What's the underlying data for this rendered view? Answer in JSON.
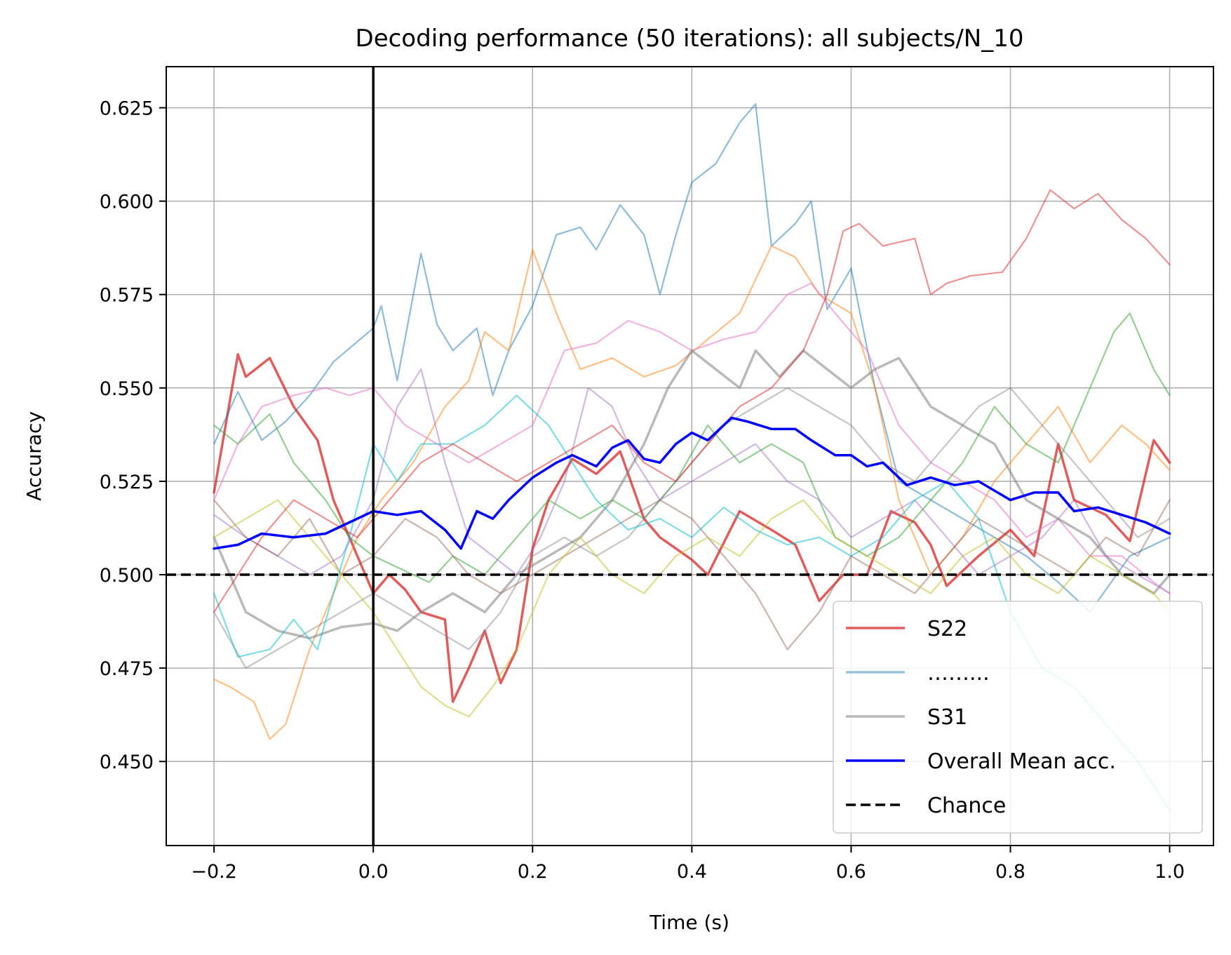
{
  "chart_data": {
    "type": "line",
    "title": "Decoding performance (50 iterations): all subjects/N_10",
    "xlabel": "Time (s)",
    "ylabel": "Accuracy",
    "xlim": [
      -0.26,
      1.055
    ],
    "ylim": [
      0.4275,
      0.636
    ],
    "xticks": [
      -0.2,
      0.0,
      0.2,
      0.4,
      0.6,
      0.8,
      1.0
    ],
    "xtick_labels": [
      "−0.2",
      "0.0",
      "0.2",
      "0.4",
      "0.6",
      "0.8",
      "1.0"
    ],
    "yticks": [
      0.45,
      0.475,
      0.5,
      0.525,
      0.55,
      0.575,
      0.6,
      0.625
    ],
    "ytick_labels": [
      "0.450",
      "0.475",
      "0.500",
      "0.525",
      "0.550",
      "0.575",
      "0.600",
      "0.625"
    ],
    "grid": true,
    "legend_position": "lower-right",
    "vline_x": 0.0,
    "chance_level": 0.5,
    "legend": [
      {
        "label": "S22",
        "color": "#d62728",
        "style": "solid",
        "opacity": 0.75
      },
      {
        "label": "……...",
        "color": "#1f77b4",
        "style": "solid",
        "opacity": 0.45
      },
      {
        "label": "S31",
        "color": "#7f7f7f",
        "style": "solid",
        "opacity": 0.55
      },
      {
        "label": "Overall Mean acc.",
        "color": "#0000ff",
        "style": "solid",
        "opacity": 1
      },
      {
        "label": "Chance",
        "color": "#000000",
        "style": "dashed",
        "opacity": 1
      }
    ],
    "series": [
      {
        "color": "#d62728",
        "opacity": 0.75,
        "width": 3.5,
        "x": [
          -0.2,
          -0.17,
          -0.16,
          -0.13,
          -0.1,
          -0.07,
          -0.05,
          -0.02,
          0.0,
          0.02,
          0.04,
          0.06,
          0.09,
          0.1,
          0.12,
          0.14,
          0.16,
          0.18,
          0.2,
          0.22,
          0.25,
          0.28,
          0.31,
          0.34,
          0.36,
          0.4,
          0.42,
          0.46,
          0.5,
          0.53,
          0.56,
          0.59,
          0.62,
          0.65,
          0.68,
          0.7,
          0.72,
          0.76,
          0.8,
          0.83,
          0.86,
          0.88,
          0.92,
          0.95,
          0.98,
          1.0
        ],
        "y": [
          0.522,
          0.559,
          0.553,
          0.558,
          0.545,
          0.536,
          0.52,
          0.505,
          0.495,
          0.5,
          0.496,
          0.49,
          0.488,
          0.466,
          0.475,
          0.485,
          0.471,
          0.48,
          0.507,
          0.52,
          0.531,
          0.527,
          0.533,
          0.515,
          0.51,
          0.504,
          0.5,
          0.517,
          0.512,
          0.508,
          0.493,
          0.5,
          0.5,
          0.517,
          0.514,
          0.508,
          0.497,
          0.505,
          0.512,
          0.505,
          0.535,
          0.52,
          0.516,
          0.509,
          0.536,
          0.53
        ]
      },
      {
        "color": "#1f77b4",
        "opacity": 0.5,
        "width": 2.2,
        "x": [
          -0.2,
          -0.17,
          -0.14,
          -0.11,
          -0.08,
          -0.05,
          0.0,
          0.01,
          0.03,
          0.06,
          0.08,
          0.1,
          0.13,
          0.15,
          0.17,
          0.2,
          0.23,
          0.26,
          0.28,
          0.31,
          0.34,
          0.36,
          0.38,
          0.4,
          0.43,
          0.46,
          0.48,
          0.5,
          0.53,
          0.55,
          0.57,
          0.6,
          0.63,
          0.66,
          0.7,
          0.74,
          0.78,
          0.82,
          0.86,
          0.9,
          0.95,
          1.0
        ],
        "y": [
          0.535,
          0.549,
          0.536,
          0.541,
          0.548,
          0.557,
          0.566,
          0.572,
          0.552,
          0.586,
          0.567,
          0.56,
          0.566,
          0.548,
          0.56,
          0.572,
          0.591,
          0.593,
          0.587,
          0.599,
          0.591,
          0.575,
          0.591,
          0.605,
          0.61,
          0.621,
          0.626,
          0.588,
          0.594,
          0.6,
          0.571,
          0.582,
          0.55,
          0.525,
          0.52,
          0.515,
          0.51,
          0.505,
          0.498,
          0.49,
          0.505,
          0.51
        ]
      },
      {
        "color": "#ff7f0e",
        "opacity": 0.5,
        "width": 2.2,
        "x": [
          -0.2,
          -0.18,
          -0.15,
          -0.13,
          -0.11,
          -0.08,
          -0.05,
          -0.02,
          0.01,
          0.05,
          0.09,
          0.12,
          0.14,
          0.17,
          0.2,
          0.23,
          0.26,
          0.3,
          0.34,
          0.38,
          0.42,
          0.46,
          0.5,
          0.53,
          0.56,
          0.6,
          0.63,
          0.66,
          0.7,
          0.74,
          0.78,
          0.82,
          0.86,
          0.9,
          0.94,
          0.97,
          1.0
        ],
        "y": [
          0.472,
          0.47,
          0.466,
          0.456,
          0.46,
          0.48,
          0.495,
          0.51,
          0.52,
          0.53,
          0.545,
          0.552,
          0.565,
          0.56,
          0.587,
          0.57,
          0.555,
          0.558,
          0.553,
          0.556,
          0.563,
          0.57,
          0.588,
          0.585,
          0.575,
          0.57,
          0.55,
          0.52,
          0.5,
          0.51,
          0.525,
          0.535,
          0.545,
          0.53,
          0.54,
          0.535,
          0.528
        ]
      },
      {
        "color": "#2ca02c",
        "opacity": 0.5,
        "width": 2.2,
        "x": [
          -0.2,
          -0.17,
          -0.13,
          -0.1,
          -0.06,
          -0.03,
          0.0,
          0.03,
          0.07,
          0.1,
          0.14,
          0.18,
          0.22,
          0.26,
          0.3,
          0.34,
          0.38,
          0.42,
          0.46,
          0.5,
          0.54,
          0.58,
          0.62,
          0.66,
          0.7,
          0.74,
          0.78,
          0.82,
          0.86,
          0.9,
          0.93,
          0.95,
          0.98,
          1.0
        ],
        "y": [
          0.54,
          0.535,
          0.543,
          0.53,
          0.52,
          0.51,
          0.505,
          0.502,
          0.498,
          0.505,
          0.5,
          0.51,
          0.52,
          0.515,
          0.52,
          0.515,
          0.525,
          0.54,
          0.53,
          0.535,
          0.53,
          0.51,
          0.505,
          0.51,
          0.52,
          0.53,
          0.545,
          0.535,
          0.53,
          0.55,
          0.565,
          0.57,
          0.555,
          0.548
        ]
      },
      {
        "color": "#9467bd",
        "opacity": 0.45,
        "width": 2.2,
        "x": [
          -0.2,
          -0.16,
          -0.12,
          -0.08,
          -0.04,
          0.0,
          0.03,
          0.06,
          0.09,
          0.12,
          0.15,
          0.18,
          0.21,
          0.24,
          0.27,
          0.3,
          0.33,
          0.36,
          0.4,
          0.44,
          0.48,
          0.52,
          0.56,
          0.6,
          0.64,
          0.68,
          0.72,
          0.76,
          0.8,
          0.84,
          0.88,
          0.92,
          0.96,
          1.0
        ],
        "y": [
          0.516,
          0.51,
          0.505,
          0.5,
          0.505,
          0.52,
          0.545,
          0.555,
          0.53,
          0.51,
          0.505,
          0.5,
          0.51,
          0.525,
          0.55,
          0.545,
          0.53,
          0.52,
          0.525,
          0.53,
          0.535,
          0.525,
          0.52,
          0.51,
          0.515,
          0.52,
          0.51,
          0.5,
          0.505,
          0.51,
          0.52,
          0.505,
          0.5,
          0.495
        ]
      },
      {
        "color": "#8c564b",
        "opacity": 0.45,
        "width": 2.2,
        "x": [
          -0.2,
          -0.16,
          -0.12,
          -0.08,
          -0.04,
          0.0,
          0.04,
          0.08,
          0.12,
          0.16,
          0.2,
          0.24,
          0.28,
          0.32,
          0.36,
          0.4,
          0.44,
          0.48,
          0.52,
          0.56,
          0.6,
          0.64,
          0.68,
          0.72,
          0.76,
          0.8,
          0.84,
          0.88,
          0.92,
          0.96,
          1.0
        ],
        "y": [
          0.52,
          0.51,
          0.505,
          0.515,
          0.5,
          0.505,
          0.515,
          0.51,
          0.5,
          0.495,
          0.5,
          0.505,
          0.51,
          0.515,
          0.52,
          0.515,
          0.505,
          0.495,
          0.48,
          0.49,
          0.505,
          0.5,
          0.495,
          0.505,
          0.515,
          0.51,
          0.505,
          0.5,
          0.51,
          0.505,
          0.52
        ]
      },
      {
        "color": "#e377c2",
        "opacity": 0.55,
        "width": 2.2,
        "x": [
          -0.2,
          -0.17,
          -0.14,
          -0.1,
          -0.06,
          -0.03,
          0.0,
          0.04,
          0.08,
          0.12,
          0.16,
          0.2,
          0.24,
          0.28,
          0.32,
          0.36,
          0.4,
          0.44,
          0.48,
          0.52,
          0.55,
          0.58,
          0.62,
          0.66,
          0.7,
          0.74,
          0.78,
          0.82,
          0.86,
          0.9,
          0.94,
          0.98,
          1.0
        ],
        "y": [
          0.52,
          0.535,
          0.545,
          0.548,
          0.55,
          0.548,
          0.55,
          0.54,
          0.535,
          0.53,
          0.535,
          0.54,
          0.56,
          0.562,
          0.568,
          0.565,
          0.56,
          0.563,
          0.565,
          0.575,
          0.578,
          0.57,
          0.56,
          0.54,
          0.53,
          0.525,
          0.52,
          0.51,
          0.515,
          0.505,
          0.505,
          0.498,
          0.495
        ]
      },
      {
        "color": "#7f7f7f",
        "opacity": 0.55,
        "width": 3.5,
        "x": [
          -0.2,
          -0.16,
          -0.12,
          -0.08,
          -0.04,
          0.0,
          0.03,
          0.06,
          0.1,
          0.14,
          0.18,
          0.22,
          0.26,
          0.3,
          0.34,
          0.37,
          0.4,
          0.43,
          0.46,
          0.48,
          0.51,
          0.54,
          0.57,
          0.6,
          0.63,
          0.66,
          0.7,
          0.74,
          0.78,
          0.82,
          0.86,
          0.9,
          0.94,
          0.98,
          1.0
        ],
        "y": [
          0.51,
          0.49,
          0.485,
          0.483,
          0.486,
          0.487,
          0.485,
          0.49,
          0.495,
          0.49,
          0.5,
          0.505,
          0.51,
          0.52,
          0.535,
          0.55,
          0.56,
          0.555,
          0.55,
          0.56,
          0.553,
          0.56,
          0.555,
          0.55,
          0.555,
          0.558,
          0.545,
          0.54,
          0.535,
          0.52,
          0.515,
          0.51,
          0.5,
          0.495,
          0.5
        ]
      },
      {
        "color": "#7f7f7f",
        "opacity": 0.45,
        "width": 2.2,
        "x": [
          -0.2,
          -0.16,
          -0.12,
          -0.08,
          -0.04,
          0.0,
          0.04,
          0.08,
          0.12,
          0.16,
          0.2,
          0.24,
          0.28,
          0.32,
          0.36,
          0.4,
          0.44,
          0.48,
          0.52,
          0.56,
          0.6,
          0.64,
          0.68,
          0.72,
          0.76,
          0.8,
          0.84,
          0.88,
          0.92,
          0.96,
          1.0
        ],
        "y": [
          0.49,
          0.475,
          0.48,
          0.485,
          0.49,
          0.495,
          0.49,
          0.485,
          0.48,
          0.49,
          0.505,
          0.51,
          0.505,
          0.51,
          0.52,
          0.53,
          0.54,
          0.545,
          0.55,
          0.545,
          0.54,
          0.53,
          0.525,
          0.535,
          0.545,
          0.55,
          0.54,
          0.53,
          0.52,
          0.51,
          0.515
        ]
      },
      {
        "color": "#bcbd22",
        "opacity": 0.5,
        "width": 2.2,
        "x": [
          -0.2,
          -0.16,
          -0.12,
          -0.08,
          -0.04,
          0.0,
          0.03,
          0.06,
          0.09,
          0.12,
          0.15,
          0.18,
          0.22,
          0.26,
          0.3,
          0.34,
          0.38,
          0.42,
          0.46,
          0.5,
          0.54,
          0.58,
          0.62,
          0.66,
          0.7,
          0.74,
          0.78,
          0.82,
          0.86,
          0.9,
          0.94,
          0.98,
          1.0
        ],
        "y": [
          0.51,
          0.515,
          0.52,
          0.51,
          0.5,
          0.49,
          0.48,
          0.47,
          0.465,
          0.462,
          0.47,
          0.48,
          0.5,
          0.51,
          0.5,
          0.495,
          0.505,
          0.51,
          0.505,
          0.515,
          0.52,
          0.51,
          0.505,
          0.5,
          0.495,
          0.505,
          0.51,
          0.5,
          0.495,
          0.505,
          0.5,
          0.495,
          0.49
        ]
      },
      {
        "color": "#17becf",
        "opacity": 0.55,
        "width": 2.2,
        "x": [
          -0.2,
          -0.17,
          -0.13,
          -0.1,
          -0.07,
          -0.03,
          0.0,
          0.03,
          0.06,
          0.1,
          0.14,
          0.18,
          0.22,
          0.25,
          0.28,
          0.32,
          0.36,
          0.4,
          0.44,
          0.48,
          0.52,
          0.56,
          0.6,
          0.64,
          0.68,
          0.72,
          0.76,
          0.8,
          0.84,
          0.88,
          0.92,
          0.96,
          1.0
        ],
        "y": [
          0.495,
          0.478,
          0.48,
          0.488,
          0.48,
          0.51,
          0.535,
          0.525,
          0.535,
          0.535,
          0.54,
          0.548,
          0.54,
          0.53,
          0.52,
          0.512,
          0.515,
          0.51,
          0.518,
          0.512,
          0.508,
          0.51,
          0.505,
          0.51,
          0.52,
          0.525,
          0.515,
          0.49,
          0.475,
          0.47,
          0.46,
          0.45,
          0.437
        ]
      },
      {
        "color": "#d62728",
        "opacity": 0.5,
        "width": 2.2,
        "x": [
          -0.2,
          -0.17,
          -0.14,
          -0.1,
          -0.06,
          -0.02,
          0.02,
          0.06,
          0.1,
          0.14,
          0.18,
          0.22,
          0.26,
          0.3,
          0.34,
          0.38,
          0.42,
          0.46,
          0.5,
          0.54,
          0.57,
          0.59,
          0.61,
          0.64,
          0.68,
          0.7,
          0.72,
          0.75,
          0.79,
          0.82,
          0.85,
          0.88,
          0.91,
          0.94,
          0.97,
          1.0
        ],
        "y": [
          0.49,
          0.5,
          0.51,
          0.52,
          0.515,
          0.51,
          0.52,
          0.53,
          0.535,
          0.53,
          0.525,
          0.53,
          0.535,
          0.54,
          0.53,
          0.525,
          0.535,
          0.545,
          0.55,
          0.56,
          0.575,
          0.592,
          0.594,
          0.588,
          0.59,
          0.575,
          0.578,
          0.58,
          0.581,
          0.59,
          0.603,
          0.598,
          0.602,
          0.595,
          0.59,
          0.583
        ]
      },
      {
        "color": "#0000ff",
        "opacity": 1,
        "width": 3.5,
        "x": [
          -0.2,
          -0.17,
          -0.14,
          -0.1,
          -0.06,
          -0.03,
          0.0,
          0.03,
          0.06,
          0.09,
          0.11,
          0.13,
          0.15,
          0.17,
          0.2,
          0.23,
          0.25,
          0.28,
          0.3,
          0.32,
          0.34,
          0.36,
          0.38,
          0.4,
          0.42,
          0.45,
          0.47,
          0.5,
          0.53,
          0.55,
          0.58,
          0.6,
          0.62,
          0.64,
          0.67,
          0.7,
          0.73,
          0.76,
          0.8,
          0.83,
          0.86,
          0.88,
          0.91,
          0.94,
          0.97,
          1.0
        ],
        "y": [
          0.507,
          0.508,
          0.511,
          0.51,
          0.511,
          0.514,
          0.517,
          0.516,
          0.517,
          0.512,
          0.507,
          0.517,
          0.515,
          0.52,
          0.526,
          0.53,
          0.532,
          0.529,
          0.534,
          0.536,
          0.531,
          0.53,
          0.535,
          0.538,
          0.536,
          0.542,
          0.541,
          0.539,
          0.539,
          0.536,
          0.532,
          0.532,
          0.529,
          0.53,
          0.524,
          0.526,
          0.524,
          0.525,
          0.52,
          0.522,
          0.522,
          0.517,
          0.518,
          0.516,
          0.514,
          0.511
        ]
      }
    ]
  }
}
